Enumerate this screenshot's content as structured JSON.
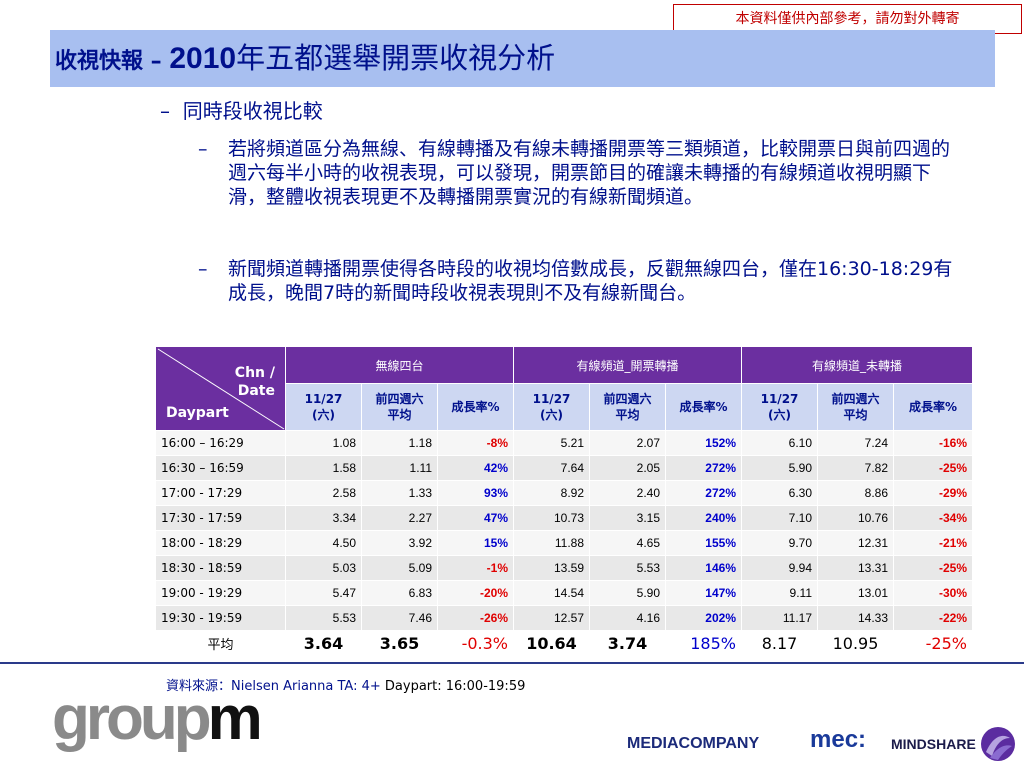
{
  "confidential": "本資料僅供內部參考，請勿對外轉寄",
  "title": {
    "part1": "收視快報 – ",
    "part2": "2010",
    "part3": "年五都選舉開票收視分析"
  },
  "bullets": {
    "level1": "同時段收視比較",
    "items": [
      "若將頻道區分為無線、有線轉播及有線未轉播開票等三類頻道，比較開票日與前四週的週六每半小時的收視表現，可以發現，開票節目的確讓未轉播的有線頻道收視明顯下滑，整體收視表現更不及轉播開票實況的有線新聞頻道。",
      "新聞頻道轉播開票使得各時段的收視均倍數成長，反觀無線四台，僅在16:30-18:29有成長，晚間7時的新聞時段收視表現則不及有線新聞台。"
    ]
  },
  "table": {
    "corner": {
      "chn": "Chn /",
      "date": "Date",
      "daypart": "Daypart"
    },
    "groups": [
      "無線四台",
      "有線頻道_開票轉播",
      "有線頻道_未轉播"
    ],
    "subheaders": [
      "11/27\n(六)",
      "前四週六\n平均",
      "成長率%"
    ],
    "rows": [
      {
        "time": "16:00 – 16:29",
        "values": [
          "1.08",
          "1.18",
          "-8%",
          "5.21",
          "2.07",
          "152%",
          "6.10",
          "7.24",
          "-16%"
        ]
      },
      {
        "time": "16:30 – 16:59",
        "values": [
          "1.58",
          "1.11",
          "42%",
          "7.64",
          "2.05",
          "272%",
          "5.90",
          "7.82",
          "-25%"
        ]
      },
      {
        "time": "17:00 - 17:29",
        "values": [
          "2.58",
          "1.33",
          "93%",
          "8.92",
          "2.40",
          "272%",
          "6.30",
          "8.86",
          "-29%"
        ]
      },
      {
        "time": "17:30 - 17:59",
        "values": [
          "3.34",
          "2.27",
          "47%",
          "10.73",
          "3.15",
          "240%",
          "7.10",
          "10.76",
          "-34%"
        ]
      },
      {
        "time": "18:00 - 18:29",
        "values": [
          "4.50",
          "3.92",
          "15%",
          "11.88",
          "4.65",
          "155%",
          "9.70",
          "12.31",
          "-21%"
        ]
      },
      {
        "time": "18:30 - 18:59",
        "values": [
          "5.03",
          "5.09",
          "-1%",
          "13.59",
          "5.53",
          "146%",
          "9.94",
          "13.31",
          "-25%"
        ]
      },
      {
        "time": "19:00 - 19:29",
        "values": [
          "5.47",
          "6.83",
          "-20%",
          "14.54",
          "5.90",
          "147%",
          "9.11",
          "13.01",
          "-30%"
        ]
      },
      {
        "time": "19:30 - 19:59",
        "values": [
          "5.53",
          "7.46",
          "-26%",
          "12.57",
          "4.16",
          "202%",
          "11.17",
          "14.33",
          "-22%"
        ]
      }
    ],
    "average": {
      "label": "平均",
      "values": [
        "3.64",
        "3.65",
        "-0.3%",
        "10.64",
        "3.74",
        "185%",
        "8.17",
        "10.95",
        "-25%"
      ]
    },
    "colors": {
      "positive": "#0000cc",
      "negative": "#e00000",
      "header": "#6b2fa0",
      "subheader": "#cdd7f2"
    }
  },
  "footer": {
    "source_label": "資料來源：Nielsen Arianna TA: 4+",
    "daypart": " Daypart: 16:00-19:59",
    "logo_groupm": {
      "part1": "group",
      "part2": "m"
    },
    "logo_mediacom": "MEDIACOMPANY",
    "logo_mec": "mec:",
    "logo_mindshare": "MINDSHARE"
  }
}
